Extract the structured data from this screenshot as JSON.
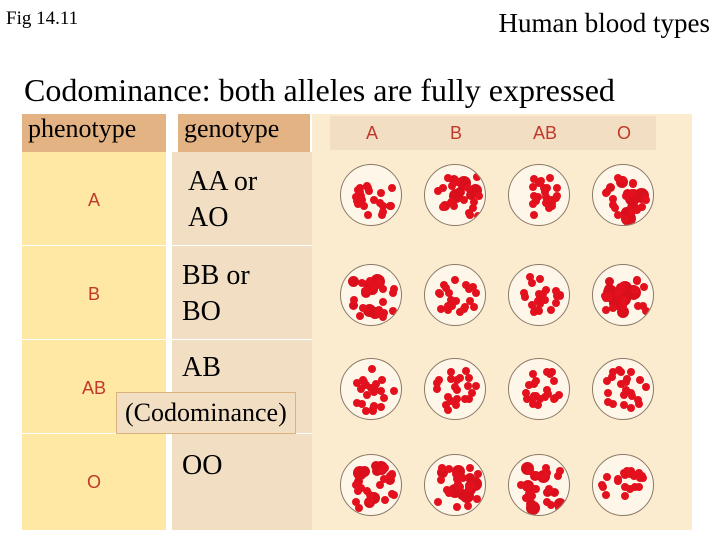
{
  "header": {
    "figure_label": "Fig 14.11",
    "topic": "Human blood types",
    "subtitle": "Codominance: both alleles are fully expressed"
  },
  "table": {
    "phenotype_header": "phenotype",
    "genotype_header": "genotype",
    "column_headers": [
      "A",
      "B",
      "AB",
      "O"
    ],
    "rows": [
      {
        "phenotype": "A",
        "genotype": "AA or\nAO"
      },
      {
        "phenotype": "B",
        "genotype": "BB or\nBO"
      },
      {
        "phenotype": "AB",
        "genotype": "AB"
      },
      {
        "phenotype": "O",
        "genotype": "OO"
      }
    ],
    "callout": "(Codominance)"
  },
  "colors": {
    "phenotype_column": "#ffe8a4",
    "genotype_column": "#f2dfc3",
    "header_fill": "#e3b383",
    "red_cell": "#e3101e",
    "label_red": "#c0392b"
  },
  "agglutination": {
    "columns": [
      "A",
      "B",
      "AB",
      "O"
    ],
    "rows": [
      {
        "phenotype": "A",
        "clumped": [
          false,
          true,
          false,
          true
        ]
      },
      {
        "phenotype": "B",
        "clumped": [
          true,
          false,
          false,
          true
        ]
      },
      {
        "phenotype": "AB",
        "clumped": [
          false,
          false,
          false,
          false
        ]
      },
      {
        "phenotype": "O",
        "clumped": [
          true,
          true,
          true,
          false
        ]
      }
    ]
  }
}
